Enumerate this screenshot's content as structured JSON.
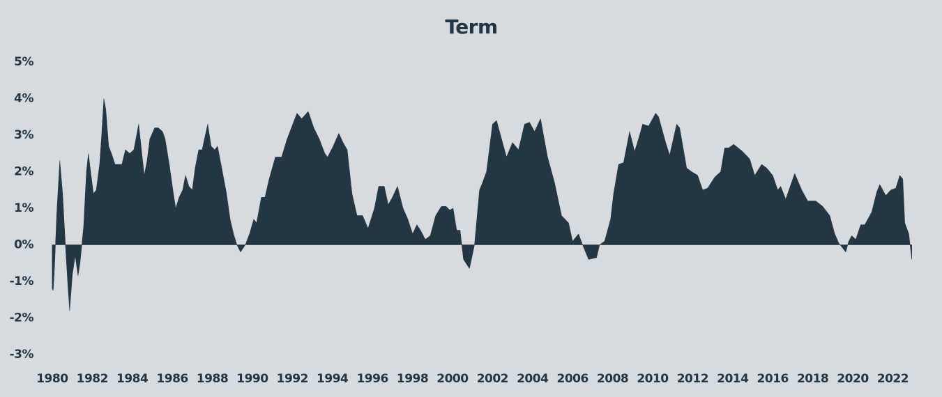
{
  "chart_data": {
    "type": "area",
    "title": "Term",
    "color": "#223643",
    "x": [
      1980.0,
      1980.05,
      1980.1,
      1980.24,
      1980.38,
      1980.52,
      1980.66,
      1980.77,
      1980.87,
      1981.01,
      1981.15,
      1981.29,
      1981.39,
      1981.57,
      1981.71,
      1981.81,
      1981.92,
      1982.06,
      1982.2,
      1982.37,
      1982.47,
      1982.58,
      1982.68,
      1982.82,
      1982.96,
      1983.14,
      1983.48,
      1983.66,
      1983.87,
      1984.08,
      1984.32,
      1984.46,
      1984.6,
      1984.74,
      1984.88,
      1985.12,
      1985.3,
      1985.51,
      1985.64,
      1985.85,
      1986.03,
      1986.17,
      1986.34,
      1986.52,
      1986.66,
      1986.83,
      1987.0,
      1987.14,
      1987.32,
      1987.49,
      1987.77,
      1987.94,
      1988.12,
      1988.26,
      1988.47,
      1988.71,
      1988.89,
      1989.06,
      1989.23,
      1989.41,
      1989.65,
      1989.86,
      1990.07,
      1990.21,
      1990.45,
      1990.63,
      1990.84,
      1991.15,
      1991.46,
      1991.74,
      1991.95,
      1992.23,
      1992.47,
      1992.79,
      1993.07,
      1993.34,
      1993.62,
      1993.76,
      1994.04,
      1994.32,
      1994.53,
      1994.74,
      1994.98,
      1995.23,
      1995.51,
      1995.78,
      1996.1,
      1996.31,
      1996.59,
      1996.79,
      1997.0,
      1997.25,
      1997.53,
      1997.77,
      1998.01,
      1998.22,
      1998.4,
      1998.64,
      1998.89,
      1999.16,
      1999.44,
      1999.69,
      1999.86,
      2000.03,
      2000.21,
      2000.38,
      2000.55,
      2000.85,
      2001.1,
      2001.35,
      2001.5,
      2001.7,
      2002.0,
      2002.2,
      2002.45,
      2002.7,
      2003.0,
      2003.3,
      2003.6,
      2003.85,
      2004.1,
      2004.4,
      2004.75,
      2005.1,
      2005.45,
      2005.8,
      2006.0,
      2006.3,
      2006.5,
      2006.8,
      2007.2,
      2007.35,
      2007.6,
      2007.9,
      2008.05,
      2008.3,
      2008.55,
      2008.85,
      2009.1,
      2009.35,
      2009.5,
      2009.8,
      2010.15,
      2010.3,
      2010.65,
      2010.85,
      2011.2,
      2011.35,
      2011.7,
      2011.95,
      2012.25,
      2012.5,
      2012.75,
      2013.1,
      2013.4,
      2013.6,
      2013.8,
      2014.05,
      2014.5,
      2014.85,
      2015.1,
      2015.45,
      2015.7,
      2016.0,
      2016.25,
      2016.4,
      2016.65,
      2017.1,
      2017.45,
      2017.75,
      2018.15,
      2018.5,
      2018.85,
      2019.1,
      2019.3,
      2019.65,
      2019.8,
      2019.95,
      2020.15,
      2020.4,
      2020.6,
      2020.95,
      2021.2,
      2021.35,
      2021.65,
      2021.9,
      2022.15,
      2022.35,
      2022.5,
      2022.6,
      2022.8,
      2022.95
    ],
    "values": [
      -1.2,
      -1.25,
      -0.8,
      1.0,
      2.3,
      1.4,
      0,
      -1.0,
      -1.8,
      -0.8,
      -0.3,
      -0.85,
      -0.5,
      0.5,
      2.0,
      2.5,
      2.0,
      1.4,
      1.5,
      2.2,
      3.0,
      4.0,
      3.7,
      2.7,
      2.5,
      2.2,
      2.2,
      2.6,
      2.5,
      2.6,
      3.3,
      2.6,
      1.9,
      2.3,
      2.9,
      3.2,
      3.2,
      3.1,
      2.9,
      2.2,
      1.5,
      1.0,
      1.3,
      1.5,
      1.9,
      1.6,
      1.5,
      2.1,
      2.6,
      2.6,
      3.3,
      2.7,
      2.6,
      2.7,
      2.1,
      1.4,
      0.7,
      0.3,
      0,
      -0.2,
      0,
      0.3,
      0.7,
      0.6,
      1.3,
      1.3,
      1.8,
      2.4,
      2.4,
      2.9,
      3.2,
      3.6,
      3.45,
      3.65,
      3.2,
      2.9,
      2.5,
      2.4,
      2.7,
      3.05,
      2.8,
      2.6,
      1.4,
      0.8,
      0.8,
      0.45,
      1.0,
      1.6,
      1.6,
      1.1,
      1.3,
      1.6,
      1.0,
      0.7,
      0.3,
      0.55,
      0.4,
      0.15,
      0.25,
      0.8,
      1.05,
      1.05,
      0.95,
      1.0,
      0.4,
      0.4,
      -0.4,
      -0.65,
      0,
      1.5,
      1.7,
      2.0,
      3.3,
      3.4,
      2.9,
      2.4,
      2.8,
      2.6,
      3.3,
      3.35,
      3.1,
      3.45,
      2.4,
      1.7,
      0.8,
      0.6,
      0.1,
      0.3,
      0,
      -0.4,
      -0.35,
      0,
      0.1,
      0.7,
      1.4,
      2.2,
      2.25,
      3.1,
      2.55,
      3.0,
      3.3,
      3.25,
      3.6,
      3.5,
      2.8,
      2.45,
      3.3,
      3.2,
      2.1,
      2.0,
      1.9,
      1.5,
      1.55,
      1.85,
      2.0,
      2.65,
      2.65,
      2.75,
      2.55,
      2.35,
      1.9,
      2.2,
      2.1,
      1.9,
      1.5,
      1.6,
      1.25,
      1.95,
      1.5,
      1.2,
      1.2,
      1.05,
      0.8,
      0.3,
      0.05,
      -0.2,
      0.1,
      0.25,
      0.15,
      0.55,
      0.55,
      0.9,
      1.45,
      1.65,
      1.35,
      1.5,
      1.55,
      1.9,
      1.8,
      0.6,
      0.3,
      -0.4
    ],
    "xlim": [
      1979.9,
      2023.1
    ],
    "xticks": [
      1980,
      1982,
      1984,
      1986,
      1988,
      1990,
      1992,
      1994,
      1996,
      1998,
      2000,
      2002,
      2004,
      2006,
      2008,
      2010,
      2012,
      2014,
      2016,
      2018,
      2020,
      2022
    ],
    "ylim": [
      -3,
      5
    ],
    "yticks": [
      {
        "value": -3,
        "label": "-3%"
      },
      {
        "value": -2,
        "label": "-2%"
      },
      {
        "value": -1,
        "label": "-1%"
      },
      {
        "value": 0,
        "label": "0%"
      },
      {
        "value": 1,
        "label": "1%"
      },
      {
        "value": 2,
        "label": "2%"
      },
      {
        "value": 3,
        "label": "3%"
      },
      {
        "value": 4,
        "label": "4%"
      },
      {
        "value": 5,
        "label": "5%"
      }
    ],
    "grid": false
  }
}
